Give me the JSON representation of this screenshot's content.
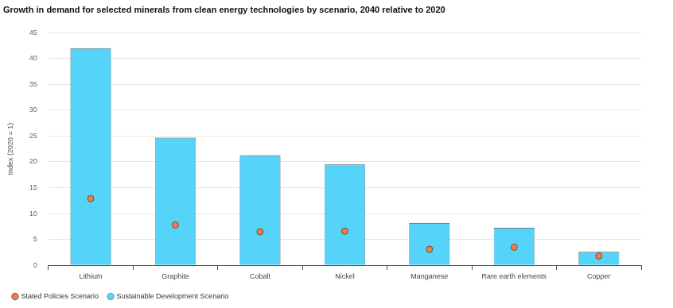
{
  "chart_data": {
    "type": "bar",
    "title": "Growth in demand for selected minerals from clean energy technologies by scenario, 2040 relative to 2020",
    "y_label": "Index (2020 = 1)",
    "categories": [
      "Lithium",
      "Graphite",
      "Cobalt",
      "Nickel",
      "Manganese",
      "Rare earth elements",
      "Copper"
    ],
    "series": [
      {
        "name": "Sustainable Development Scenario",
        "type": "bar",
        "color": "#56d3f8",
        "values": [
          42,
          24.7,
          21.3,
          19.5,
          8.2,
          7.3,
          2.6
        ]
      },
      {
        "name": "Stated Policies Scenario",
        "type": "scatter",
        "marker": "circle",
        "color": "#f47c4a",
        "values": [
          12.9,
          7.8,
          6.5,
          6.6,
          3.1,
          3.5,
          1.8
        ]
      }
    ],
    "ylim": [
      0,
      45
    ],
    "yticks": [
      0,
      5,
      10,
      15,
      20,
      25,
      30,
      35,
      40,
      45
    ],
    "grid": true,
    "legend": "bottom-left"
  }
}
